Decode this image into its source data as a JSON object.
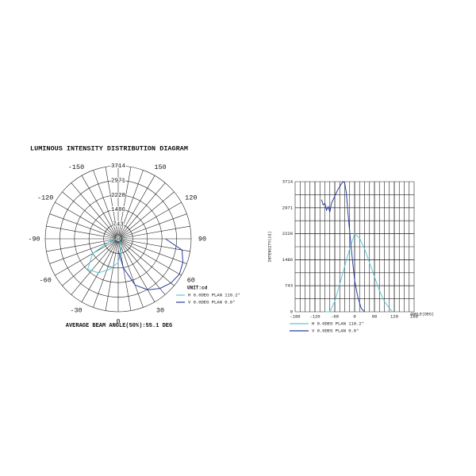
{
  "chart_data": [
    {
      "type": "polar",
      "title": "LUMINOUS INTENSITY DISTRIBUTION DIAGRAM",
      "unit_label": "UNIT:cd",
      "footer": "AVERAGE BEAM ANGLE(50%):55.1 DEG",
      "rlim": [
        0,
        3714
      ],
      "rticks": [
        0,
        743,
        1486,
        2228,
        2971,
        3714
      ],
      "angle_ticks": [
        -150,
        150,
        -120,
        120,
        -90,
        90,
        -60,
        60,
        -30,
        30,
        0
      ],
      "series": [
        {
          "name": "H 0.0DEG PLAN 110.2°",
          "color": "#5cc6d6",
          "x": [
            -90,
            -75,
            -60,
            -45,
            -30,
            -15,
            0,
            15,
            30,
            45
          ],
          "values": [
            0,
            400,
            1500,
            2200,
            2000,
            1600,
            1200,
            600,
            200,
            0
          ]
        },
        {
          "name": "V 0.0DEG PLAN 0.0°",
          "color": "#2b3d9e",
          "x": [
            0,
            10,
            20,
            30,
            40,
            50,
            60,
            70,
            80,
            90
          ],
          "values": [
            600,
            1500,
            2500,
            3000,
            3300,
            3500,
            3600,
            3500,
            3300,
            2400
          ]
        }
      ]
    },
    {
      "type": "line",
      "xlabel": "ANGLE(DEG)",
      "ylabel": "INTENSITY(cd)",
      "xlim": [
        -180,
        180
      ],
      "xticks": [
        -180,
        -120,
        -60,
        0,
        60,
        120,
        180
      ],
      "ylim": [
        0,
        3714
      ],
      "yticks": [
        0,
        743,
        1486,
        2228,
        2971,
        3714
      ],
      "series": [
        {
          "name": "H 0.0DEG PLAN 110.2°",
          "color": "#5cc6d6",
          "x": [
            -90,
            -75,
            -60,
            -45,
            -30,
            -15,
            0,
            15,
            30,
            45,
            60,
            75,
            90,
            105,
            115
          ],
          "values": [
            0,
            0,
            300,
            800,
            1300,
            1800,
            2228,
            2100,
            1800,
            1400,
            1000,
            600,
            300,
            100,
            0
          ]
        },
        {
          "name": "V 0.0DEG PLAN 0.0°",
          "color": "#2b3d9e",
          "x": [
            -100,
            -95,
            -90,
            -85,
            -80,
            -75,
            -70,
            -60,
            -50,
            -40,
            -35,
            -30,
            -25,
            -20,
            -10,
            0,
            10,
            20,
            30
          ],
          "values": [
            3200,
            3050,
            3100,
            2900,
            3000,
            2850,
            3100,
            3300,
            3500,
            3650,
            3714,
            3680,
            3400,
            2800,
            1800,
            900,
            400,
            100,
            0
          ]
        }
      ]
    }
  ]
}
